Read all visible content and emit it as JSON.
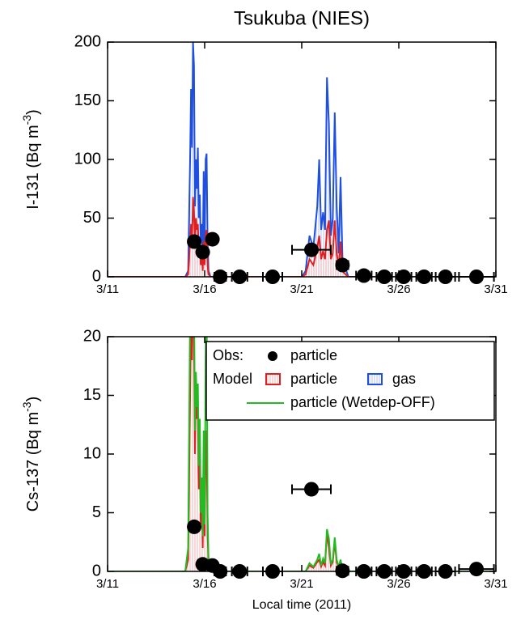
{
  "chart_data": [
    {
      "type": "line",
      "title": "Tsukuba (NIES)",
      "ylabel": [
        "I-131 (Bq m",
        "-3",
        ")"
      ],
      "xlim": [
        11,
        31
      ],
      "xticks": [
        {
          "value": 11,
          "label": "3/11"
        },
        {
          "value": 16,
          "label": "3/16"
        },
        {
          "value": 21,
          "label": "3/21"
        },
        {
          "value": 26,
          "label": "3/26"
        },
        {
          "value": 31,
          "label": "3/31"
        }
      ],
      "ylim": [
        0,
        200
      ],
      "yticks": [
        0,
        50,
        100,
        150,
        200
      ],
      "series": [
        {
          "kind": "area",
          "color": "#1f4fe0",
          "x": [
            11,
            15.0,
            15.15,
            15.25,
            15.3,
            15.35,
            15.4,
            15.45,
            15.5,
            15.55,
            15.6,
            15.65,
            15.7,
            15.75,
            15.8,
            15.85,
            15.9,
            15.95,
            16.0,
            16.05,
            16.1,
            16.15,
            16.2,
            16.3,
            16.5,
            21.0,
            21.2,
            21.4,
            21.6,
            21.8,
            21.9,
            22.0,
            22.1,
            22.2,
            22.3,
            22.4,
            22.5,
            22.6,
            22.7,
            22.8,
            22.9,
            23.0,
            23.1,
            23.2,
            23.4,
            24,
            31
          ],
          "values": [
            0,
            0,
            5,
            100,
            160,
            110,
            200,
            180,
            60,
            100,
            75,
            110,
            50,
            70,
            30,
            45,
            15,
            90,
            20,
            100,
            105,
            30,
            5,
            0,
            0,
            0,
            5,
            35,
            25,
            60,
            100,
            40,
            55,
            40,
            170,
            130,
            35,
            50,
            140,
            60,
            20,
            85,
            15,
            10,
            0,
            0,
            0
          ]
        },
        {
          "kind": "area",
          "color": "#e02020",
          "x": [
            11,
            15.0,
            15.15,
            15.25,
            15.3,
            15.35,
            15.4,
            15.45,
            15.5,
            15.55,
            15.6,
            15.65,
            15.7,
            15.75,
            15.8,
            15.85,
            15.9,
            15.95,
            16.0,
            16.05,
            16.1,
            16.15,
            16.2,
            16.3,
            16.5,
            21.0,
            21.2,
            21.4,
            21.6,
            21.8,
            21.9,
            22.0,
            22.1,
            22.2,
            22.3,
            22.4,
            22.5,
            22.6,
            22.7,
            22.8,
            22.9,
            23.0,
            23.1,
            23.2,
            23.4,
            24,
            31
          ],
          "values": [
            0,
            0,
            2,
            30,
            45,
            30,
            68,
            55,
            25,
            50,
            40,
            45,
            20,
            30,
            10,
            20,
            5,
            30,
            10,
            35,
            40,
            10,
            2,
            0,
            0,
            0,
            2,
            15,
            10,
            25,
            35,
            15,
            22,
            15,
            40,
            48,
            15,
            20,
            48,
            20,
            8,
            30,
            5,
            3,
            0,
            0,
            0
          ]
        },
        {
          "kind": "points",
          "color": "#000000",
          "x": [
            15.46,
            15.9,
            16.4,
            16.8,
            17.8,
            19.5,
            21.5,
            23.1,
            24.2,
            25.25,
            26.25,
            27.3,
            28.4,
            30.0
          ],
          "values": [
            30,
            21,
            32,
            0,
            0,
            0,
            23,
            10,
            1,
            0,
            0,
            0,
            0,
            0
          ],
          "xerr": [
            0,
            0,
            0,
            0.3,
            0.4,
            0.5,
            1.0,
            0.3,
            0.4,
            0.4,
            0.4,
            0.4,
            0.5,
            0.9
          ]
        }
      ]
    },
    {
      "type": "line",
      "ylabel": [
        "Cs-137 (Bq m",
        "-3",
        ")"
      ],
      "xlabel": "Local time (2011)",
      "xlim": [
        11,
        31
      ],
      "xticks": [
        {
          "value": 11,
          "label": "3/11"
        },
        {
          "value": 16,
          "label": "3/16"
        },
        {
          "value": 21,
          "label": "3/21"
        },
        {
          "value": 26,
          "label": "3/26"
        },
        {
          "value": 31,
          "label": "3/31"
        }
      ],
      "ylim": [
        0,
        20
      ],
      "yticks": [
        0,
        5,
        10,
        15,
        20
      ],
      "series": [
        {
          "kind": "area",
          "color": "#e02020",
          "x": [
            11,
            15.0,
            15.15,
            15.25,
            15.3,
            15.35,
            15.4,
            15.45,
            15.5,
            15.55,
            15.6,
            15.65,
            15.7,
            15.75,
            15.8,
            15.85,
            15.9,
            15.95,
            16.0,
            16.05,
            16.1,
            16.15,
            16.2,
            16.3,
            16.5,
            21.0,
            21.2,
            21.4,
            21.6,
            21.8,
            21.9,
            22.0,
            22.1,
            22.2,
            22.3,
            22.4,
            22.5,
            22.6,
            22.7,
            22.8,
            22.9,
            23.0,
            23.1,
            23.2,
            23.4,
            24,
            31
          ],
          "values": [
            0,
            0,
            1,
            15,
            22,
            18,
            25,
            20,
            10,
            16,
            13,
            14,
            7,
            10,
            4,
            6,
            2,
            9,
            3,
            10,
            12,
            3,
            1,
            0,
            0,
            0,
            0,
            0.5,
            0.3,
            0.8,
            1.0,
            0.4,
            0.8,
            0.5,
            3.3,
            2.0,
            0.5,
            0.8,
            2.5,
            0.8,
            0.3,
            0.8,
            0.2,
            0.1,
            0,
            0,
            0
          ]
        },
        {
          "kind": "line",
          "color": "#22bb22",
          "x": [
            11,
            15.0,
            15.15,
            15.25,
            15.3,
            15.35,
            15.4,
            15.45,
            15.5,
            15.55,
            15.6,
            15.65,
            15.7,
            15.75,
            15.8,
            15.85,
            15.9,
            15.95,
            16.0,
            16.05,
            16.1,
            16.15,
            16.2,
            16.3,
            16.5,
            21.0,
            21.2,
            21.4,
            21.6,
            21.8,
            21.9,
            22.0,
            22.1,
            22.2,
            22.3,
            22.4,
            22.5,
            22.6,
            22.7,
            22.8,
            22.9,
            23.0,
            23.1,
            23.2,
            23.4,
            24,
            31
          ],
          "values": [
            0,
            0,
            2,
            22,
            28,
            20,
            30,
            24,
            12,
            17,
            14,
            16,
            9,
            13,
            5,
            8,
            3,
            12,
            4,
            18,
            24,
            5,
            1,
            0,
            0,
            0,
            0,
            0.7,
            0.4,
            1.0,
            1.5,
            0.5,
            1.1,
            0.7,
            3.6,
            2.8,
            0.6,
            1.0,
            2.9,
            1.0,
            0.4,
            1.0,
            0.2,
            0.1,
            0,
            0,
            0
          ]
        },
        {
          "kind": "points",
          "color": "#000000",
          "x": [
            15.46,
            15.9,
            16.4,
            16.8,
            17.8,
            19.5,
            21.5,
            23.1,
            24.2,
            25.25,
            26.25,
            27.3,
            28.4,
            30.0
          ],
          "values": [
            3.8,
            0.6,
            0.5,
            0,
            0,
            0,
            7,
            0.05,
            0,
            0,
            0,
            0,
            0,
            0.2
          ],
          "xerr": [
            0,
            0,
            0,
            0.3,
            0.4,
            0.5,
            1.0,
            0.3,
            0.4,
            0.4,
            0.4,
            0.4,
            0.5,
            0.9
          ]
        }
      ],
      "legend": {
        "corner": "upper right",
        "rows": [
          {
            "label": "Obs:",
            "items": [
              {
                "name": "particle",
                "marker": "dot",
                "color": "#000000"
              }
            ]
          },
          {
            "label": "Model",
            "items": [
              {
                "name": "particle",
                "marker": "hatch",
                "color": "#e02020"
              },
              {
                "name": "gas",
                "marker": "hatch",
                "color": "#1f4fe0"
              }
            ]
          },
          {
            "items": [
              {
                "name": "particle (Wetdep-OFF)",
                "marker": "line",
                "color": "#22bb22"
              }
            ]
          }
        ]
      }
    }
  ]
}
